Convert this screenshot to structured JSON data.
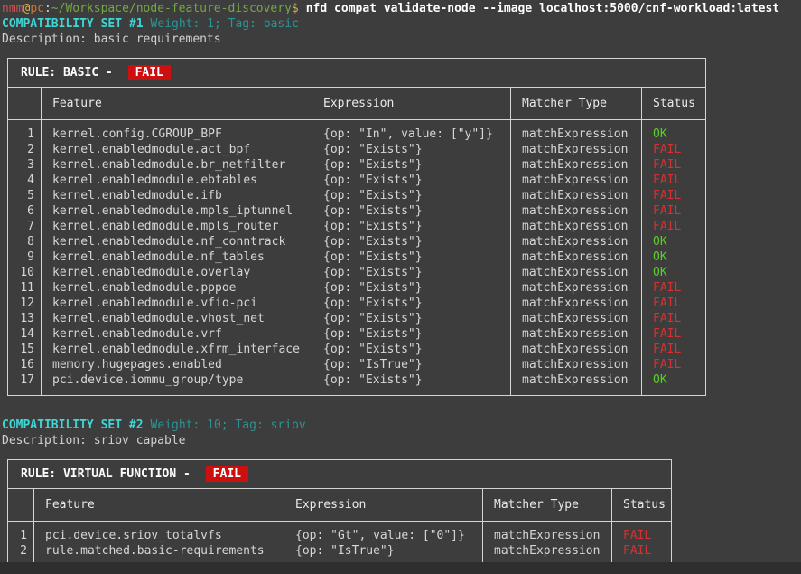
{
  "prompt": {
    "user": "nmm",
    "at": "@",
    "host": "pc",
    "separator": ":",
    "path": "~/Workspace/node-feature-discovery",
    "symbol": "$",
    "command": "nfd compat validate-node --image localhost:5000/cnf-workload:latest"
  },
  "colors": {
    "background": "#3d3d3d",
    "accent_cyan": "#3fd6d6",
    "dim_teal": "#2a9595",
    "status_ok": "#5ecb2c",
    "status_fail": "#d23232",
    "fail_badge_bg": "#cc0f0f",
    "table_border": "#d4d4d4",
    "prompt_user": "#c85050",
    "prompt_host": "#cd7a32",
    "prompt_path": "#74a845"
  },
  "sets": [
    {
      "title": "COMPATIBILITY SET #1",
      "meta": "Weight: 1; Tag: basic",
      "description": "Description: basic requirements",
      "rule": {
        "label": "RULE: BASIC - ",
        "status": "FAIL"
      },
      "columns": {
        "num": "",
        "feature": "Feature",
        "expression": "Expression",
        "matcher": "Matcher Type",
        "status": "Status"
      },
      "rows": [
        {
          "num": "1",
          "feature": "kernel.config.CGROUP_BPF",
          "expression": "{op: \"In\", value: [\"y\"]}",
          "matcher": "matchExpression",
          "status": "OK"
        },
        {
          "num": "2",
          "feature": "kernel.enabledmodule.act_bpf",
          "expression": "{op: \"Exists\"}",
          "matcher": "matchExpression",
          "status": "FAIL"
        },
        {
          "num": "3",
          "feature": "kernel.enabledmodule.br_netfilter",
          "expression": "{op: \"Exists\"}",
          "matcher": "matchExpression",
          "status": "FAIL"
        },
        {
          "num": "4",
          "feature": "kernel.enabledmodule.ebtables",
          "expression": "{op: \"Exists\"}",
          "matcher": "matchExpression",
          "status": "FAIL"
        },
        {
          "num": "5",
          "feature": "kernel.enabledmodule.ifb",
          "expression": "{op: \"Exists\"}",
          "matcher": "matchExpression",
          "status": "FAIL"
        },
        {
          "num": "6",
          "feature": "kernel.enabledmodule.mpls_iptunnel",
          "expression": "{op: \"Exists\"}",
          "matcher": "matchExpression",
          "status": "FAIL"
        },
        {
          "num": "7",
          "feature": "kernel.enabledmodule.mpls_router",
          "expression": "{op: \"Exists\"}",
          "matcher": "matchExpression",
          "status": "FAIL"
        },
        {
          "num": "8",
          "feature": "kernel.enabledmodule.nf_conntrack",
          "expression": "{op: \"Exists\"}",
          "matcher": "matchExpression",
          "status": "OK"
        },
        {
          "num": "9",
          "feature": "kernel.enabledmodule.nf_tables",
          "expression": "{op: \"Exists\"}",
          "matcher": "matchExpression",
          "status": "OK"
        },
        {
          "num": "10",
          "feature": "kernel.enabledmodule.overlay",
          "expression": "{op: \"Exists\"}",
          "matcher": "matchExpression",
          "status": "OK"
        },
        {
          "num": "11",
          "feature": "kernel.enabledmodule.pppoe",
          "expression": "{op: \"Exists\"}",
          "matcher": "matchExpression",
          "status": "FAIL"
        },
        {
          "num": "12",
          "feature": "kernel.enabledmodule.vfio-pci",
          "expression": "{op: \"Exists\"}",
          "matcher": "matchExpression",
          "status": "FAIL"
        },
        {
          "num": "13",
          "feature": "kernel.enabledmodule.vhost_net",
          "expression": "{op: \"Exists\"}",
          "matcher": "matchExpression",
          "status": "FAIL"
        },
        {
          "num": "14",
          "feature": "kernel.enabledmodule.vrf",
          "expression": "{op: \"Exists\"}",
          "matcher": "matchExpression",
          "status": "FAIL"
        },
        {
          "num": "15",
          "feature": "kernel.enabledmodule.xfrm_interface",
          "expression": "{op: \"Exists\"}",
          "matcher": "matchExpression",
          "status": "FAIL"
        },
        {
          "num": "16",
          "feature": "memory.hugepages.enabled",
          "expression": "{op: \"IsTrue\"}",
          "matcher": "matchExpression",
          "status": "FAIL"
        },
        {
          "num": "17",
          "feature": "pci.device.iommu_group/type",
          "expression": "{op: \"Exists\"}",
          "matcher": "matchExpression",
          "status": "OK"
        }
      ]
    },
    {
      "title": "COMPATIBILITY SET #2",
      "meta": "Weight: 10; Tag: sriov",
      "description": "Description: sriov capable",
      "rule": {
        "label": "RULE: VIRTUAL FUNCTION - ",
        "status": "FAIL"
      },
      "columns": {
        "num": "",
        "feature": "Feature",
        "expression": "Expression",
        "matcher": "Matcher Type",
        "status": "Status"
      },
      "rows": [
        {
          "num": "1",
          "feature": "pci.device.sriov_totalvfs",
          "expression": "{op: \"Gt\", value: [\"0\"]}",
          "matcher": "matchExpression",
          "status": "FAIL"
        },
        {
          "num": "2",
          "feature": "rule.matched.basic-requirements",
          "expression": "{op: \"IsTrue\"}",
          "matcher": "matchExpression",
          "status": "FAIL"
        }
      ]
    }
  ]
}
